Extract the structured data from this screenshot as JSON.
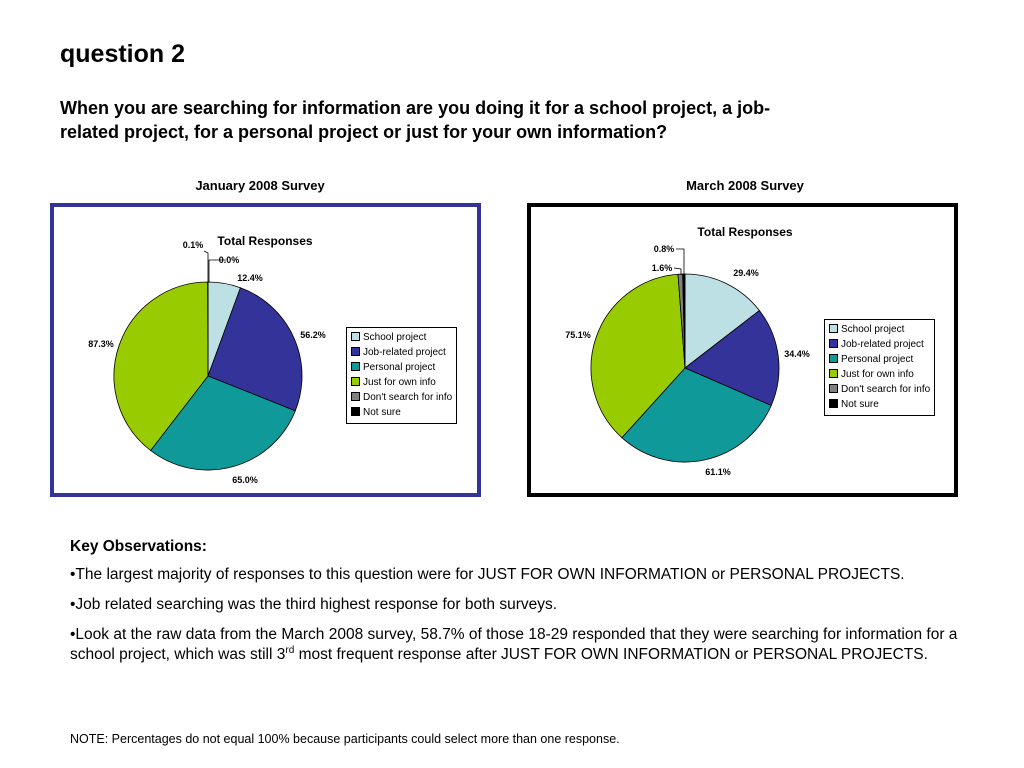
{
  "slide": {
    "title": "question 2",
    "question": "When you are searching for information are you doing it for a school project, a job-related project, for a personal project or just for your own information?"
  },
  "legend_items": [
    {
      "label": "School project",
      "color": "#bde0e4"
    },
    {
      "label": "Job-related project",
      "color": "#333399"
    },
    {
      "label": "Personal project",
      "color": "#0f9999"
    },
    {
      "label": "Just for own info",
      "color": "#99cc00"
    },
    {
      "label": "Don't search for info",
      "color": "#808080"
    },
    {
      "label": "Not sure",
      "color": "#000000"
    }
  ],
  "chart_data": [
    {
      "type": "pie",
      "survey_label": "January 2008 Survey",
      "title": "Total Responses",
      "categories": [
        "School project",
        "Job-related project",
        "Personal project",
        "Just for own info",
        "Don't search for info",
        "Not sure"
      ],
      "values": [
        12.4,
        56.2,
        65.0,
        87.3,
        0.1,
        0.0
      ],
      "data_labels": [
        "12.4%",
        "56.2%",
        "65.0%",
        "87.3%",
        "0.1%",
        "0.0%"
      ],
      "legend_position": "right",
      "border_color": "#333399"
    },
    {
      "type": "pie",
      "survey_label": "March 2008 Survey",
      "title": "Total Responses",
      "categories": [
        "School project",
        "Job-related project",
        "Personal project",
        "Just for own info",
        "Don't search for info",
        "Not sure"
      ],
      "values": [
        29.4,
        34.4,
        61.1,
        75.1,
        1.6,
        0.8
      ],
      "data_labels": [
        "29.4%",
        "34.4%",
        "61.1%",
        "75.1%",
        "1.6%",
        "0.8%"
      ],
      "legend_position": "right",
      "border_color": "#000000"
    }
  ],
  "observations": {
    "heading": "Key Observations:",
    "bullet_1": "•The largest majority of responses to this question were for JUST FOR OWN INFORMATION or PERSONAL PROJECTS.",
    "bullet_2": "•Job related searching was the third highest response for both surveys.",
    "bullet_3_before": "•Look at the raw data from the March 2008 survey, 58.7% of those 18-29 responded that they were searching for information for a school project, which was still 3",
    "bullet_3_sup": "rd",
    "bullet_3_after": " most frequent response after JUST FOR OWN INFORMATION or PERSONAL PROJECTS."
  },
  "note": "NOTE: Percentages do not equal 100% because participants could select more than one response."
}
